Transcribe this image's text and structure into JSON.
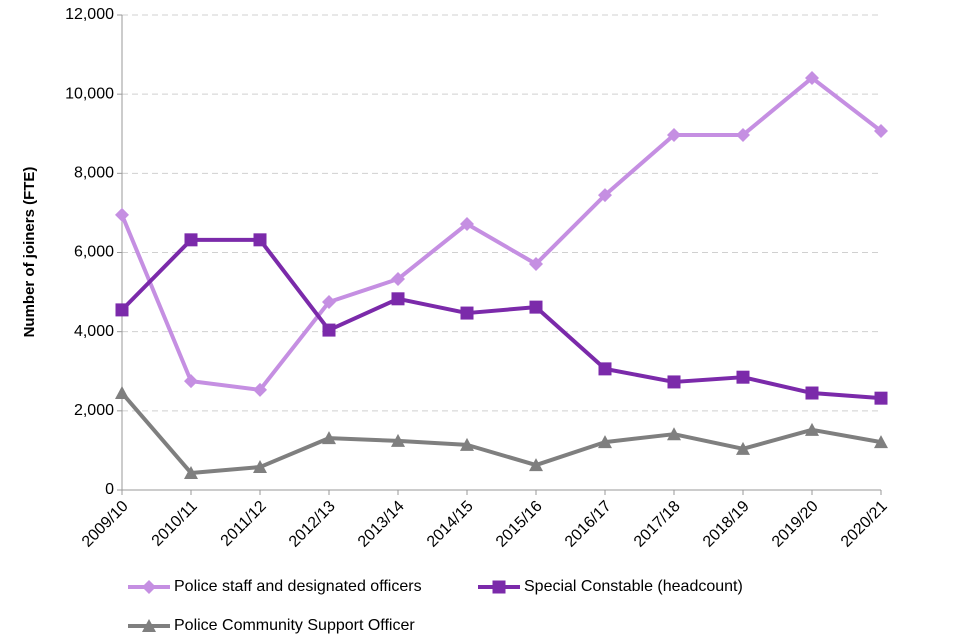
{
  "chart_data": {
    "type": "line",
    "y_label": "Number of joiners (FTE)",
    "categories": [
      "2009/10",
      "2010/11",
      "2011/12",
      "2012/13",
      "2013/14",
      "2014/15",
      "2015/16",
      "2016/17",
      "2017/18",
      "2018/19",
      "2019/20",
      "2020/21"
    ],
    "series": [
      {
        "name": "Police staff and designated officers",
        "color": "#c58fe2",
        "marker": "diamond",
        "values": [
          6950,
          2750,
          2530,
          4750,
          5330,
          6720,
          5710,
          7450,
          8970,
          8970,
          10410,
          9070
        ]
      },
      {
        "name": "Special Constable (headcount)",
        "color": "#7b2aaa",
        "marker": "square",
        "values": [
          4550,
          6320,
          6320,
          4040,
          4830,
          4470,
          4620,
          3060,
          2730,
          2850,
          2450,
          2320
        ]
      },
      {
        "name": "Police Community Support Officer",
        "color": "#7f7f7f",
        "marker": "triangle",
        "values": [
          2450,
          430,
          580,
          1310,
          1240,
          1140,
          630,
          1210,
          1410,
          1040,
          1520,
          1210
        ]
      }
    ],
    "ylim": [
      0,
      12000
    ],
    "yticks": [
      0,
      {
        "value": 2000,
        "label": "2,000"
      },
      {
        "value": 4000,
        "label": "4,000"
      },
      {
        "value": 6000,
        "label": "6,000"
      },
      {
        "value": 8000,
        "label": "8,000"
      },
      {
        "value": 10000,
        "label": "10,000"
      },
      {
        "value": 12000,
        "label": "12,000"
      }
    ],
    "grid": true
  }
}
